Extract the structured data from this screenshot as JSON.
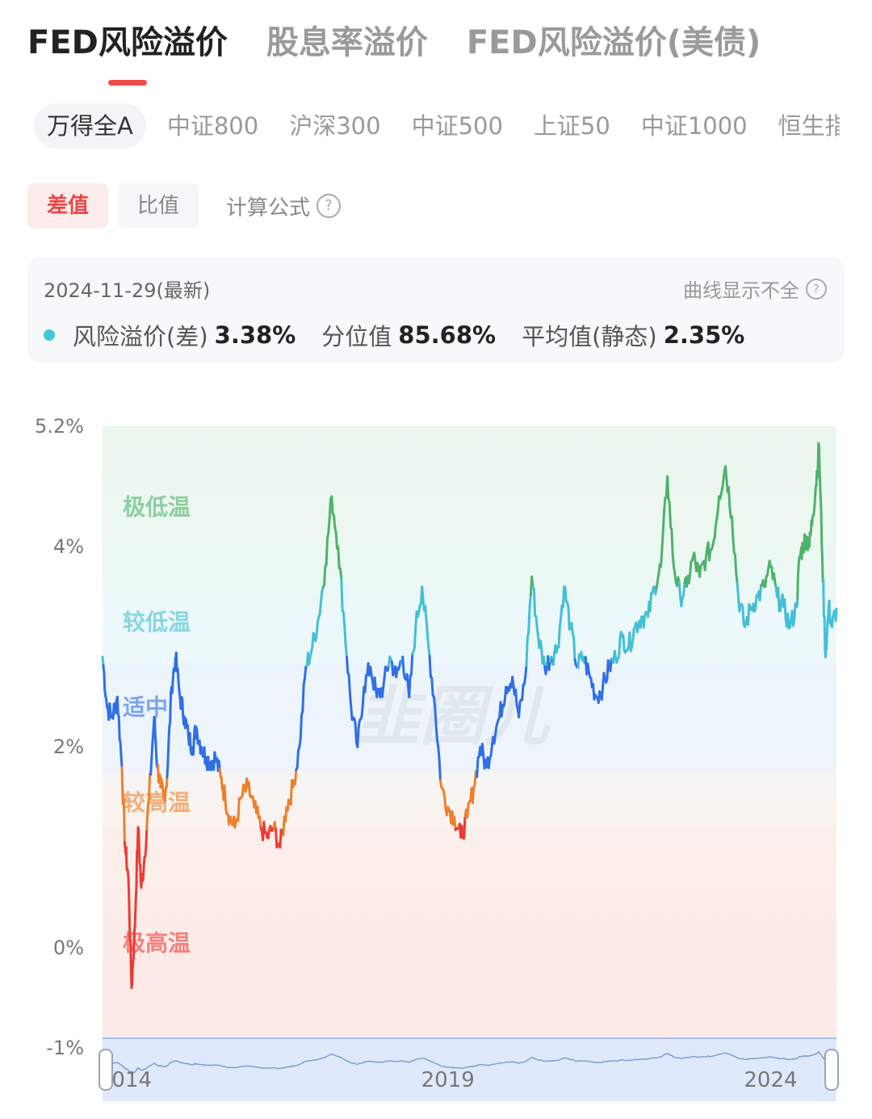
{
  "tabs": {
    "items": [
      "FED风险溢价",
      "股息率溢价",
      "FED风险溢价(美债)"
    ],
    "active": 0
  },
  "index_tabs": {
    "items": [
      "万得全A",
      "中证800",
      "沪深300",
      "中证500",
      "上证50",
      "中证1000",
      "恒生指"
    ],
    "active": 0
  },
  "mode": {
    "diff_label": "差值",
    "ratio_label": "比值",
    "formula_label": "计算公式"
  },
  "summary": {
    "date": "2024-11-29(最新)",
    "warning": "曲线显示不全",
    "premium_label": "风险溢价(差)",
    "premium_value": "3.38%",
    "pct_label": "分位值",
    "pct_value": "85.68%",
    "avg_label": "平均值(静态)",
    "avg_value": "2.35%"
  },
  "watermark": "韭圈儿",
  "chart_data": {
    "type": "line",
    "ylim": [
      -1,
      5.2
    ],
    "y_ticks": [
      "5.2%",
      "4%",
      "2%",
      "0%",
      "-1%"
    ],
    "y_tick_values": [
      5.2,
      4,
      2,
      0,
      -1
    ],
    "x_start": 2013.55,
    "x_end": 2024.92,
    "x_ticks": [
      "2014",
      "2019",
      "2024"
    ],
    "x_tick_values": [
      2013.9,
      2018.9,
      2023.9
    ],
    "bands": [
      {
        "label": "极低温",
        "from": 3.6,
        "to": 5.2,
        "color": "#4fb26a"
      },
      {
        "label": "较低温",
        "from": 2.85,
        "to": 3.6,
        "color": "#45bfd4"
      },
      {
        "label": "适中",
        "from": 1.75,
        "to": 2.85,
        "color": "#2f6fe6"
      },
      {
        "label": "较高温",
        "from": 1.2,
        "to": 1.75,
        "color": "#ef7f2b"
      },
      {
        "label": "极高温",
        "from": -1,
        "to": 1.2,
        "color": "#ec3b36"
      }
    ],
    "series": [
      {
        "x": [
          2013.55,
          2013.62,
          2013.7,
          2013.78,
          2013.85,
          2013.9,
          2013.95,
          2014.0,
          2014.05,
          2014.1,
          2014.15,
          2014.2,
          2014.27,
          2014.35,
          2014.4,
          2014.45,
          2014.5,
          2014.55,
          2014.62,
          2014.68,
          2014.75,
          2014.82,
          2014.88,
          2014.95,
          2015.0,
          2015.08,
          2015.15,
          2015.22,
          2015.3,
          2015.38,
          2015.45,
          2015.52,
          2015.6,
          2015.7,
          2015.8,
          2015.9,
          2016.0,
          2016.1,
          2016.2,
          2016.3,
          2016.4,
          2016.5,
          2016.6,
          2016.7,
          2016.8,
          2016.9,
          2017.0,
          2017.1,
          2017.2,
          2017.3,
          2017.4,
          2017.5,
          2017.6,
          2017.7,
          2017.8,
          2017.9,
          2018.0,
          2018.1,
          2018.2,
          2018.3,
          2018.4,
          2018.5,
          2018.6,
          2018.7,
          2018.8,
          2018.9,
          2019.0,
          2019.1,
          2019.2,
          2019.3,
          2019.4,
          2019.5,
          2019.6,
          2019.7,
          2019.8,
          2019.9,
          2020.0,
          2020.1,
          2020.2,
          2020.3,
          2020.4,
          2020.5,
          2020.6,
          2020.7,
          2020.8,
          2020.9,
          2021.0,
          2021.1,
          2021.2,
          2021.3,
          2021.4,
          2021.5,
          2021.6,
          2021.7,
          2021.8,
          2021.9,
          2022.0,
          2022.1,
          2022.2,
          2022.3,
          2022.4,
          2022.5,
          2022.6,
          2022.7,
          2022.8,
          2022.9,
          2023.0,
          2023.1,
          2023.2,
          2023.3,
          2023.4,
          2023.5,
          2023.6,
          2023.7,
          2023.8,
          2023.9,
          2024.0,
          2024.1,
          2024.2,
          2024.3,
          2024.35,
          2024.4,
          2024.45,
          2024.5,
          2024.55,
          2024.6,
          2024.65,
          2024.7,
          2024.75,
          2024.8,
          2024.85,
          2024.92
        ],
        "y": [
          2.9,
          2.4,
          2.3,
          2.5,
          1.8,
          1.0,
          0.7,
          -0.4,
          0.2,
          1.2,
          0.6,
          0.9,
          1.5,
          2.3,
          1.8,
          1.6,
          1.5,
          1.7,
          2.6,
          2.9,
          2.5,
          2.3,
          2.1,
          2.0,
          2.2,
          2.0,
          1.9,
          1.85,
          1.9,
          1.7,
          1.5,
          1.3,
          1.2,
          1.5,
          1.6,
          1.4,
          1.2,
          1.1,
          1.2,
          1.0,
          1.4,
          1.6,
          2.0,
          2.8,
          3.0,
          3.3,
          3.8,
          4.5,
          4.0,
          3.2,
          2.4,
          2.0,
          2.6,
          2.8,
          2.5,
          2.6,
          2.9,
          2.7,
          2.9,
          2.5,
          3.2,
          3.6,
          3.0,
          2.4,
          1.6,
          1.4,
          1.3,
          1.1,
          1.3,
          1.6,
          2.0,
          1.8,
          2.1,
          2.3,
          2.6,
          2.7,
          2.3,
          2.7,
          3.7,
          3.1,
          2.8,
          2.9,
          3.0,
          3.6,
          3.2,
          2.8,
          2.9,
          2.7,
          2.5,
          2.6,
          2.8,
          2.9,
          3.1,
          3.0,
          3.2,
          3.3,
          3.3,
          3.6,
          3.8,
          4.7,
          3.8,
          3.5,
          3.6,
          3.9,
          3.7,
          3.9,
          4.0,
          4.5,
          4.8,
          4.3,
          3.5,
          3.2,
          3.4,
          3.5,
          3.6,
          3.8,
          3.5,
          3.4,
          3.2,
          3.4,
          3.9,
          4.0,
          4.1,
          4.0,
          4.3,
          4.6,
          5.0,
          3.9,
          2.9,
          3.4,
          3.2,
          3.38
        ]
      }
    ]
  }
}
